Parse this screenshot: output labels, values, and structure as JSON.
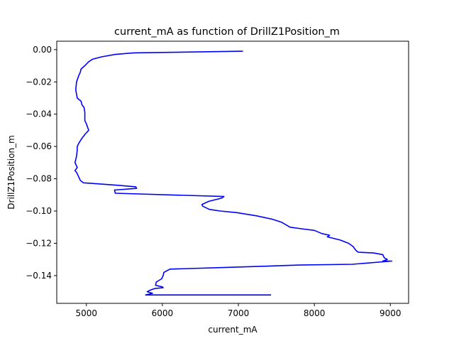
{
  "chart_data": {
    "type": "line",
    "title": "current_mA as function of DrillZ1Position_m",
    "xlabel": "current_mA",
    "ylabel": "DrillZ1Position_m",
    "xlim": [
      4610,
      9240
    ],
    "ylim": [
      -0.1572,
      0.0052
    ],
    "x_ticks": [
      5000,
      6000,
      7000,
      8000,
      9000
    ],
    "x_tick_labels": [
      "5000",
      "6000",
      "7000",
      "8000",
      "9000"
    ],
    "y_ticks": [
      0.0,
      -0.02,
      -0.04,
      -0.06,
      -0.08,
      -0.1,
      -0.12,
      -0.14
    ],
    "y_tick_labels": [
      "0.00",
      "−0.02",
      "−0.04",
      "−0.06",
      "−0.08",
      "−0.10",
      "−0.12",
      "−0.14"
    ],
    "grid": false,
    "series": [
      {
        "color": "#0000ff",
        "x": [
          7060,
          5620,
          5380,
          5200,
          5080,
          5030,
          4980,
          4930,
          4920,
          4900,
          4870,
          4860,
          4880,
          4930,
          4940,
          4970,
          4980,
          4980,
          4980,
          5000,
          5030,
          4990,
          4940,
          4900,
          4880,
          4880,
          4870,
          4850,
          4880,
          4850,
          4870,
          4900,
          4920,
          4960,
          5110,
          5400,
          5650,
          5660,
          5370,
          5380,
          6810,
          6780,
          6610,
          6520,
          6530,
          6620,
          6760,
          6980,
          7240,
          7440,
          7570,
          7680,
          7830,
          8000,
          8100,
          8200,
          8170,
          8340,
          8450,
          8510,
          8540,
          8560,
          8580,
          8780,
          8900,
          8920,
          8960,
          8900,
          9020,
          8500,
          7800,
          6800,
          6100,
          6020,
          6010,
          5990,
          5920,
          5910,
          6000,
          6010,
          5900,
          5840,
          5800,
          5870,
          5780,
          7430
        ],
        "y": [
          -0.001,
          -0.002,
          -0.003,
          -0.0045,
          -0.006,
          -0.0075,
          -0.01,
          -0.012,
          -0.014,
          -0.016,
          -0.02,
          -0.025,
          -0.03,
          -0.032,
          -0.034,
          -0.036,
          -0.039,
          -0.042,
          -0.044,
          -0.046,
          -0.05,
          -0.052,
          -0.055,
          -0.058,
          -0.06,
          -0.062,
          -0.066,
          -0.07,
          -0.073,
          -0.075,
          -0.076,
          -0.079,
          -0.081,
          -0.0825,
          -0.083,
          -0.084,
          -0.085,
          -0.086,
          -0.087,
          -0.089,
          -0.091,
          -0.092,
          -0.094,
          -0.096,
          -0.097,
          -0.099,
          -0.1,
          -0.101,
          -0.103,
          -0.105,
          -0.107,
          -0.11,
          -0.111,
          -0.112,
          -0.114,
          -0.115,
          -0.116,
          -0.118,
          -0.12,
          -0.122,
          -0.124,
          -0.125,
          -0.1255,
          -0.126,
          -0.127,
          -0.129,
          -0.13,
          -0.131,
          -0.131,
          -0.133,
          -0.1335,
          -0.135,
          -0.136,
          -0.138,
          -0.14,
          -0.142,
          -0.144,
          -0.146,
          -0.147,
          -0.1475,
          -0.148,
          -0.149,
          -0.15,
          -0.151,
          -0.152,
          -0.152
        ]
      }
    ]
  }
}
